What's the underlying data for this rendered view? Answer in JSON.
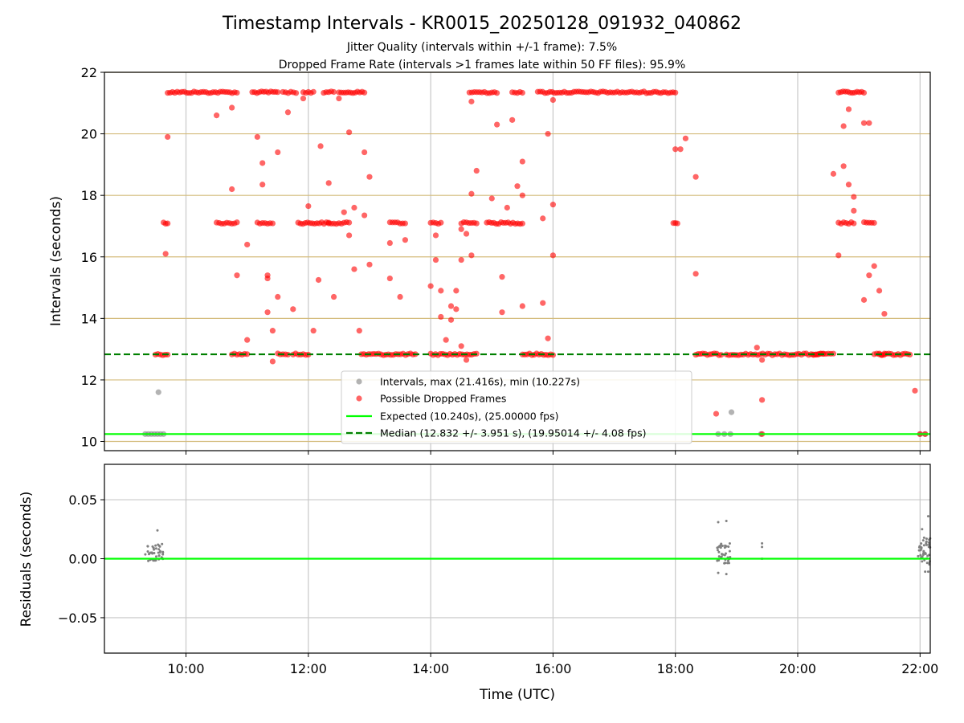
{
  "figure": {
    "title": "Timestamp Intervals - KR0015_20250128_091932_040862",
    "subtitle_1": "Jitter Quality (intervals within +/-1 frame): 7.5%",
    "subtitle_2": "Dropped Frame Rate (intervals >1 frames late within 50 FF files): 95.9%"
  },
  "chart_data": [
    {
      "type": "scatter",
      "xlabel": "",
      "ylabel": "Intervals (seconds)",
      "x_unit": "time (UTC, hours)",
      "xlim": [
        "08:40",
        "22:10"
      ],
      "ylim": [
        9.7,
        22
      ],
      "yticks": [
        10,
        12,
        14,
        16,
        18,
        20,
        22
      ],
      "grid": true,
      "horizontal_gridlines_color": "#d4bc7c",
      "legend": {
        "placement": "lower center",
        "entries": [
          "Intervals, max (21.416s), min (10.227s)",
          "Possible Dropped Frames",
          "Expected (10.240s), (25.00000 fps)",
          "Median (12.832 +/- 3.951 s), (19.95014 +/- 4.08 fps)"
        ]
      },
      "reference_lines": [
        {
          "name": "Expected (10.240s), (25.00000 fps)",
          "y": 10.24,
          "style": "solid",
          "color": "#00ff00"
        },
        {
          "name": "Median (12.832 +/- 3.951 s), (19.95014 +/- 4.08 fps)",
          "y": 12.832,
          "style": "dashed",
          "color": "#008000"
        }
      ],
      "series": [
        {
          "name": "Intervals, max (21.416s), min (10.227s)",
          "color": "#808080",
          "points": [
            [
              "09:20",
              10.24
            ],
            [
              "09:23",
              10.24
            ],
            [
              "09:26",
              10.24
            ],
            [
              "09:29",
              10.24
            ],
            [
              "09:32",
              10.24
            ],
            [
              "09:35",
              10.24
            ],
            [
              "09:38",
              10.24
            ],
            [
              "09:33",
              11.6
            ],
            [
              "18:42",
              10.24
            ],
            [
              "18:48",
              10.24
            ],
            [
              "18:54",
              10.24
            ],
            [
              "18:55",
              10.95
            ],
            [
              "19:24",
              10.24
            ],
            [
              "22:00",
              10.24
            ],
            [
              "22:05",
              10.24
            ]
          ]
        },
        {
          "name": "Possible Dropped Frames",
          "color": "#ff0000",
          "dense_runs": [
            {
              "from": "09:30",
              "to": "09:42",
              "y": 12.832
            },
            {
              "from": "09:38",
              "to": "09:42",
              "y": 17.1
            },
            {
              "from": "09:42",
              "to": "10:50",
              "y": 21.35
            },
            {
              "from": "10:30",
              "to": "10:50",
              "y": 17.1
            },
            {
              "from": "10:45",
              "to": "11:00",
              "y": 12.832
            },
            {
              "from": "11:05",
              "to": "11:30",
              "y": 21.35
            },
            {
              "from": "11:10",
              "to": "11:25",
              "y": 17.1
            },
            {
              "from": "11:30",
              "to": "11:40",
              "y": 12.832
            },
            {
              "from": "11:35",
              "to": "11:48",
              "y": 21.35
            },
            {
              "from": "11:45",
              "to": "12:00",
              "y": 12.832
            },
            {
              "from": "11:50",
              "to": "12:20",
              "y": 17.1
            },
            {
              "from": "11:55",
              "to": "12:05",
              "y": 21.35
            },
            {
              "from": "12:15",
              "to": "12:25",
              "y": 21.35
            },
            {
              "from": "12:20",
              "to": "12:40",
              "y": 17.1
            },
            {
              "from": "12:30",
              "to": "12:55",
              "y": 21.35
            },
            {
              "from": "12:52",
              "to": "13:45",
              "y": 12.832
            },
            {
              "from": "13:20",
              "to": "13:35",
              "y": 17.1
            },
            {
              "from": "14:00",
              "to": "14:10",
              "y": 17.1
            },
            {
              "from": "14:00",
              "to": "14:45",
              "y": 12.832
            },
            {
              "from": "14:30",
              "to": "14:45",
              "y": 17.1
            },
            {
              "from": "14:38",
              "to": "15:05",
              "y": 21.35
            },
            {
              "from": "14:55",
              "to": "15:30",
              "y": 17.1
            },
            {
              "from": "15:20",
              "to": "15:30",
              "y": 21.35
            },
            {
              "from": "15:30",
              "to": "16:00",
              "y": 12.832
            },
            {
              "from": "15:45",
              "to": "18:00",
              "y": 21.35
            },
            {
              "from": "17:58",
              "to": "18:02",
              "y": 17.1
            },
            {
              "from": "18:20",
              "to": "18:45",
              "y": 12.832
            },
            {
              "from": "18:50",
              "to": "20:25",
              "y": 12.832
            },
            {
              "from": "20:15",
              "to": "20:35",
              "y": 12.832
            },
            {
              "from": "20:40",
              "to": "20:55",
              "y": 17.1
            },
            {
              "from": "20:40",
              "to": "21:05",
              "y": 21.35
            },
            {
              "from": "21:05",
              "to": "21:15",
              "y": 17.1
            },
            {
              "from": "21:15",
              "to": "21:25",
              "y": 12.832
            },
            {
              "from": "21:20",
              "to": "21:50",
              "y": 12.832
            }
          ],
          "points": [
            [
              "09:42",
              19.9
            ],
            [
              "09:40",
              16.1
            ],
            [
              "10:30",
              20.6
            ],
            [
              "10:45",
              20.85
            ],
            [
              "10:50",
              15.4
            ],
            [
              "10:45",
              18.2
            ],
            [
              "11:00",
              16.4
            ],
            [
              "11:00",
              13.3
            ],
            [
              "11:10",
              19.9
            ],
            [
              "11:15",
              19.05
            ],
            [
              "11:15",
              18.35
            ],
            [
              "11:20",
              15.4
            ],
            [
              "11:20",
              14.2
            ],
            [
              "11:25",
              13.6
            ],
            [
              "11:30",
              19.4
            ],
            [
              "11:40",
              20.7
            ],
            [
              "11:45",
              14.3
            ],
            [
              "11:30",
              14.7
            ],
            [
              "11:25",
              12.6
            ],
            [
              "11:20",
              15.3
            ],
            [
              "11:55",
              21.15
            ],
            [
              "12:00",
              17.65
            ],
            [
              "12:05",
              13.6
            ],
            [
              "12:10",
              15.25
            ],
            [
              "12:12",
              19.6
            ],
            [
              "12:20",
              18.4
            ],
            [
              "12:25",
              14.7
            ],
            [
              "12:30",
              21.15
            ],
            [
              "12:35",
              17.45
            ],
            [
              "12:40",
              20.05
            ],
            [
              "12:45",
              15.6
            ],
            [
              "12:50",
              13.6
            ],
            [
              "12:55",
              19.4
            ],
            [
              "12:45",
              17.6
            ],
            [
              "12:40",
              16.7
            ],
            [
              "12:55",
              17.35
            ],
            [
              "13:00",
              18.6
            ],
            [
              "13:00",
              15.75
            ],
            [
              "13:20",
              15.3
            ],
            [
              "13:20",
              16.45
            ],
            [
              "13:30",
              14.7
            ],
            [
              "13:35",
              16.55
            ],
            [
              "14:00",
              15.05
            ],
            [
              "14:05",
              15.9
            ],
            [
              "14:05",
              16.7
            ],
            [
              "14:10",
              14.05
            ],
            [
              "14:10",
              14.9
            ],
            [
              "14:15",
              13.3
            ],
            [
              "14:20",
              14.4
            ],
            [
              "14:20",
              13.95
            ],
            [
              "14:25",
              14.3
            ],
            [
              "14:25",
              14.9
            ],
            [
              "14:30",
              16.9
            ],
            [
              "14:30",
              15.9
            ],
            [
              "14:35",
              16.75
            ],
            [
              "14:40",
              18.05
            ],
            [
              "14:40",
              16.05
            ],
            [
              "14:45",
              18.8
            ],
            [
              "14:40",
              21.05
            ],
            [
              "14:30",
              13.1
            ],
            [
              "14:35",
              12.65
            ],
            [
              "15:00",
              17.9
            ],
            [
              "15:05",
              20.3
            ],
            [
              "15:10",
              15.35
            ],
            [
              "15:10",
              14.2
            ],
            [
              "15:15",
              17.6
            ],
            [
              "15:20",
              20.45
            ],
            [
              "15:25",
              18.3
            ],
            [
              "15:30",
              18.0
            ],
            [
              "15:30",
              19.1
            ],
            [
              "15:30",
              14.4
            ],
            [
              "15:50",
              14.5
            ],
            [
              "15:50",
              17.25
            ],
            [
              "15:55",
              20.0
            ],
            [
              "15:55",
              13.35
            ],
            [
              "16:00",
              16.05
            ],
            [
              "16:00",
              17.7
            ],
            [
              "16:00",
              21.1
            ],
            [
              "18:00",
              19.5
            ],
            [
              "18:05",
              19.5
            ],
            [
              "18:10",
              19.85
            ],
            [
              "18:20",
              18.6
            ],
            [
              "18:20",
              15.45
            ],
            [
              "18:40",
              10.9
            ],
            [
              "19:20",
              13.05
            ],
            [
              "19:25",
              12.65
            ],
            [
              "19:25",
              11.35
            ],
            [
              "20:35",
              18.7
            ],
            [
              "20:40",
              16.05
            ],
            [
              "20:45",
              20.25
            ],
            [
              "20:45",
              18.95
            ],
            [
              "20:50",
              20.8
            ],
            [
              "20:50",
              18.35
            ],
            [
              "20:55",
              17.95
            ],
            [
              "20:55",
              17.5
            ],
            [
              "21:05",
              20.35
            ],
            [
              "21:10",
              20.35
            ],
            [
              "21:05",
              14.6
            ],
            [
              "21:10",
              15.4
            ],
            [
              "21:15",
              15.7
            ],
            [
              "21:20",
              14.9
            ],
            [
              "21:25",
              14.15
            ],
            [
              "21:55",
              11.65
            ],
            [
              "19:25",
              10.24
            ],
            [
              "22:00",
              10.24
            ],
            [
              "22:05",
              10.24
            ]
          ]
        }
      ]
    },
    {
      "type": "scatter",
      "xlabel": "Time (UTC)",
      "ylabel": "Residuals (seconds)",
      "xlim": [
        "08:40",
        "22:10"
      ],
      "xticks": [
        "10:00",
        "12:00",
        "14:00",
        "16:00",
        "18:00",
        "20:00",
        "22:00"
      ],
      "ylim": [
        -0.08,
        0.08
      ],
      "yticks": [
        "0.05",
        "0.00",
        "−0.05"
      ],
      "ytick_values": [
        0.05,
        0.0,
        -0.05
      ],
      "grid": true,
      "reference_lines": [
        {
          "y": 0.0,
          "style": "solid",
          "color": "#00ff00"
        }
      ],
      "series": [
        {
          "color": "#808080",
          "clusters": [
            {
              "from": "09:20",
              "to": "09:38",
              "y_min": -0.002,
              "y_max": 0.013,
              "n": 40
            },
            {
              "from": "18:40",
              "to": "18:55",
              "y_min": -0.004,
              "y_max": 0.013,
              "n": 35
            },
            {
              "from": "21:58",
              "to": "22:10",
              "y_min": -0.005,
              "y_max": 0.018,
              "n": 45
            }
          ],
          "points": [
            [
              "09:32",
              0.024
            ],
            [
              "18:42",
              0.031
            ],
            [
              "18:50",
              0.032
            ],
            [
              "18:42",
              -0.012
            ],
            [
              "18:50",
              -0.013
            ],
            [
              "19:25",
              0.01
            ],
            [
              "19:25",
              0.013
            ],
            [
              "19:25",
              0.0
            ],
            [
              "22:08",
              0.036
            ],
            [
              "22:05",
              -0.011
            ],
            [
              "22:08",
              -0.011
            ],
            [
              "22:02",
              0.025
            ]
          ]
        }
      ]
    }
  ]
}
